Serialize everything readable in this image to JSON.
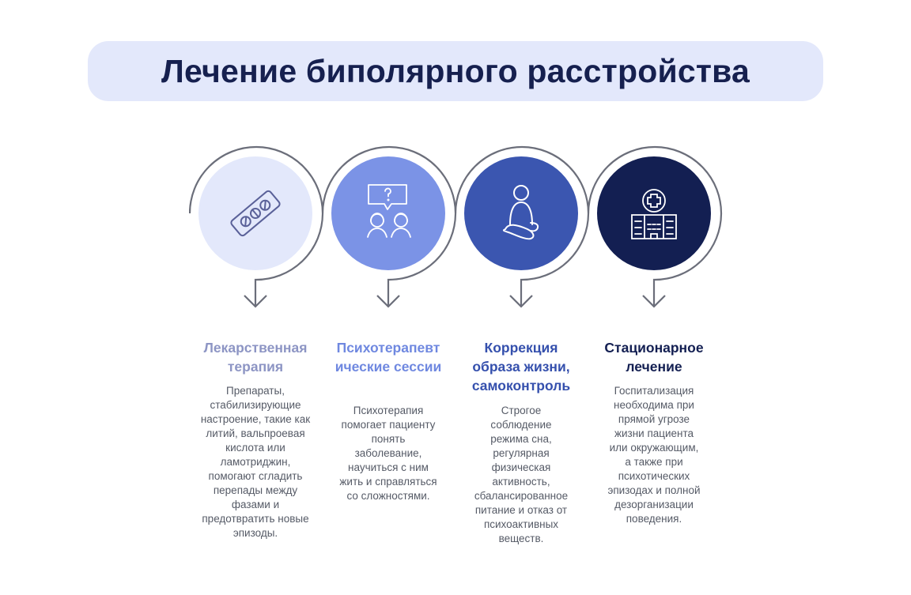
{
  "title": "Лечение биполярного расстройства",
  "colors": {
    "banner_bg": "#e3e8fb",
    "title": "#16204f",
    "arc": "#6b6e7a"
  },
  "steps": [
    {
      "icon": "pill-blister-icon",
      "circle_color": "#e3e8fb",
      "icon_color": "#5a6199",
      "heading_color": "#8d95c4",
      "heading": "Лекарственная терапия",
      "text": "Препараты, стабилизирующие настроение, такие как литий, вальпроевая кислота или ламотриджин, помогают сгладить перепады между фазами и предотвратить новые эпизоды."
    },
    {
      "icon": "therapy-conversation-icon",
      "circle_color": "#7b93e6",
      "icon_color": "#ffffff",
      "heading_color": "#6f88e0",
      "heading": "Психотерапевтические сессии",
      "text": "Психотерапия помогает пациенту понять заболевание, научиться с ним жить и справляться со сложностями."
    },
    {
      "icon": "meditating-person-icon",
      "circle_color": "#3b56b0",
      "icon_color": "#ffffff",
      "heading_color": "#3550ad",
      "heading": "Коррекция образа жизни, самоконтроль",
      "text": "Строгое соблюдение режима сна, регулярная физическая активность, сбалансированное питание и отказ от психоактивных веществ."
    },
    {
      "icon": "hospital-icon",
      "circle_color": "#131f52",
      "icon_color": "#ffffff",
      "heading_color": "#131f52",
      "heading": "Стационарное лечение",
      "text": "Госпитализация необходима при прямой угрозе жизни пациента или окружающим, а также при психотических эпизодах и полной дезорганизации поведения."
    }
  ]
}
